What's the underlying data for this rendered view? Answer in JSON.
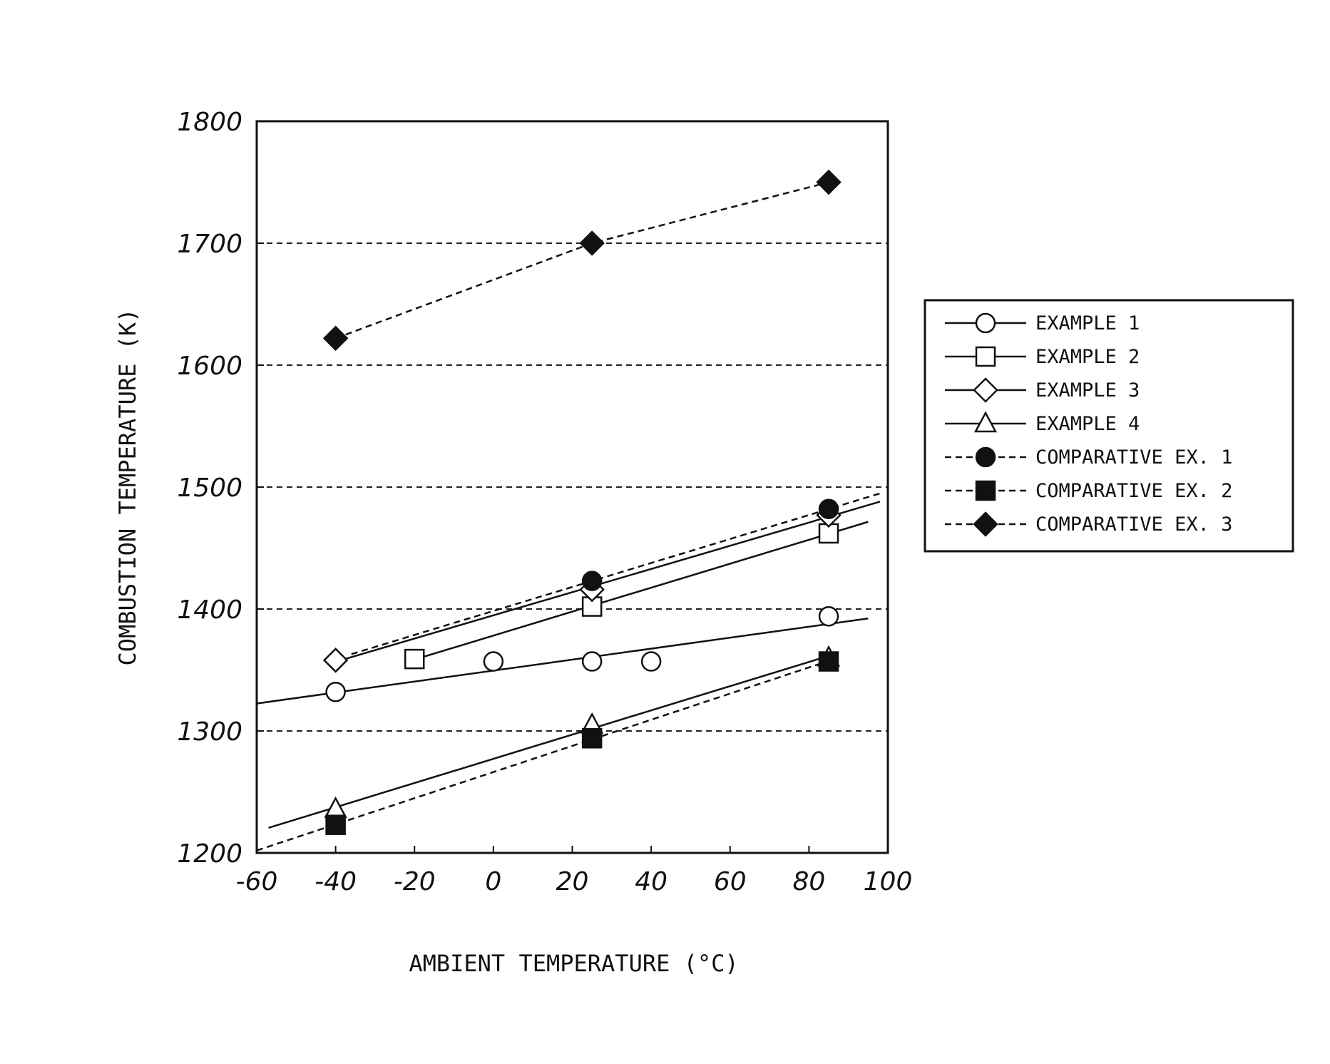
{
  "chart_data": {
    "type": "line",
    "title": "",
    "xlabel": "AMBIENT TEMPERATURE (°C)",
    "ylabel": "COMBUSTION TEMPERATURE (K)",
    "xlim": [
      -60,
      100
    ],
    "ylim": [
      1200,
      1800
    ],
    "xticks": [
      "-60",
      "-40",
      "-20",
      "0",
      "20",
      "40",
      "60",
      "80",
      "100"
    ],
    "yticks": [
      "1200",
      "1300",
      "1400",
      "1500",
      "1600",
      "1700",
      "1800"
    ],
    "grid": "horizontal dashed",
    "legend_position": "right",
    "series": [
      {
        "name": "EXAMPLE 1",
        "marker": "circle-open",
        "line": "solid",
        "color": "#111111",
        "x": [
          -40,
          0,
          25,
          40,
          85
        ],
        "y": [
          1332,
          1357,
          1357,
          1357,
          1394
        ]
      },
      {
        "name": "EXAMPLE 2",
        "marker": "square-open",
        "line": "solid",
        "color": "#111111",
        "x": [
          -20,
          25,
          85
        ],
        "y": [
          1359,
          1402,
          1462
        ]
      },
      {
        "name": "EXAMPLE 3",
        "marker": "diamond-open",
        "line": "solid",
        "color": "#111111",
        "x": [
          -40,
          25,
          85
        ],
        "y": [
          1358,
          1416,
          1477
        ]
      },
      {
        "name": "EXAMPLE 4",
        "marker": "triangle-open",
        "line": "solid",
        "color": "#111111",
        "x": [
          -40,
          25,
          85
        ],
        "y": [
          1236,
          1305,
          1360
        ]
      },
      {
        "name": "COMPARATIVE EX. 1",
        "marker": "circle-filled",
        "line": "dashed",
        "color": "#111111",
        "x": [
          25,
          85
        ],
        "y": [
          1423,
          1482
        ]
      },
      {
        "name": "COMPARATIVE EX. 2",
        "marker": "square-filled",
        "line": "dashed",
        "color": "#111111",
        "x": [
          -40,
          25,
          85
        ],
        "y": [
          1223,
          1294,
          1357
        ]
      },
      {
        "name": "COMPARATIVE EX. 3",
        "marker": "diamond-filled",
        "line": "dashed",
        "color": "#111111",
        "x": [
          -40,
          25,
          85
        ],
        "y": [
          1622,
          1700,
          1750
        ]
      }
    ]
  }
}
